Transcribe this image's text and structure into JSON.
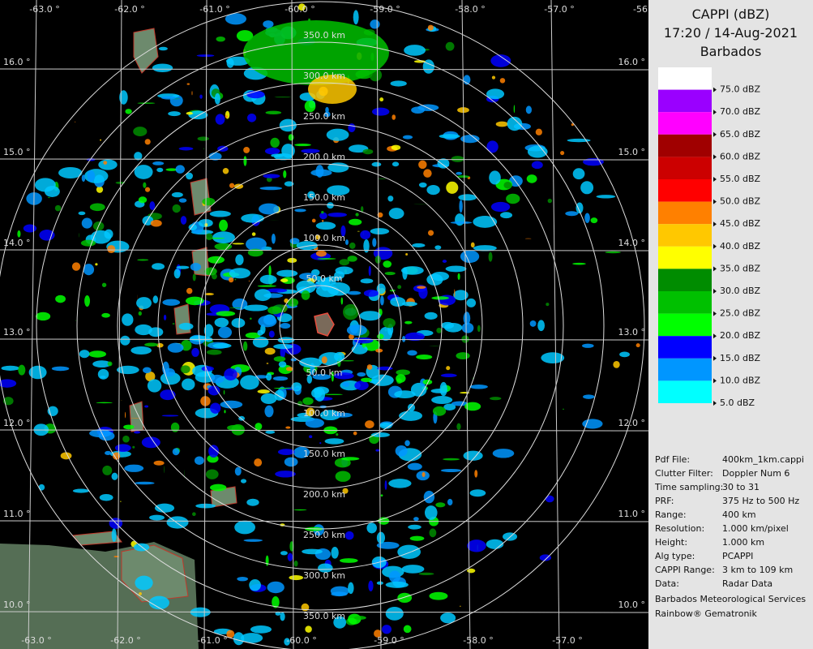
{
  "header": {
    "lines": [
      "CAPPI (dBZ)",
      "17:20 / 14-Aug-2021",
      "Barbados"
    ]
  },
  "legend": {
    "colors": [
      "#ffffff",
      "#9a00ff",
      "#ff00ff",
      "#a00000",
      "#cc0000",
      "#ff0000",
      "#ff8000",
      "#ffc800",
      "#ffff00",
      "#008c00",
      "#00c000",
      "#00ff00",
      "#0000ff",
      "#0096ff",
      "#00ffff"
    ],
    "labels": [
      "75.0 dBZ",
      "70.0 dBZ",
      "65.0 dBZ",
      "60.0 dBZ",
      "55.0 dBZ",
      "50.0 dBZ",
      "45.0 dBZ",
      "40.0 dBZ",
      "35.0 dBZ",
      "30.0 dBZ",
      "25.0 dBZ",
      "20.0 dBZ",
      "15.0 dBZ",
      "10.0 dBZ",
      "5.0 dBZ"
    ]
  },
  "info": {
    "rows": [
      [
        "Pdf File:",
        "400km_1km.cappi"
      ],
      [
        "Clutter Filter:",
        "Doppler Num 6"
      ],
      [
        "Time sampling:",
        "30 to 31"
      ],
      [
        "PRF:",
        "375 Hz to 500 Hz"
      ],
      [
        "Range:",
        "400 km"
      ],
      [
        "Resolution:",
        "1.000 km/pixel"
      ],
      [
        "Height:",
        "1.000 km"
      ],
      [
        "Alg type:",
        "PCAPPI"
      ],
      [
        "CAPPI Range:",
        "3 km to 109 km"
      ],
      [
        "Data:",
        "Radar Data"
      ]
    ],
    "footer": [
      "Barbados Meteorological Services",
      "Rainbow® Gematronik"
    ]
  },
  "map": {
    "lon_labels_top": [
      "-63.0 °",
      "-62.0 °",
      "-61.0 °",
      "-60.0 °",
      "-59.0 °",
      "-58.0 °",
      "-57.0 °",
      "-56"
    ],
    "lon_labels_bottom": [
      "-63.0 °",
      "-62.0 °",
      "-61.0 °",
      "-60.0 °",
      "-59.0 °",
      "-58.0 °",
      "-57.0 °"
    ],
    "lat_labels": [
      "16.0 °",
      "15.0 °",
      "14.0 °",
      "13.0 °",
      "12.0 °",
      "11.0 °",
      "10.0 °"
    ],
    "ring_labels": [
      "50.0 km",
      "100.0 km",
      "150.0 km",
      "200.0 km",
      "250.0 km",
      "300.0 km",
      "350.0 km"
    ]
  }
}
